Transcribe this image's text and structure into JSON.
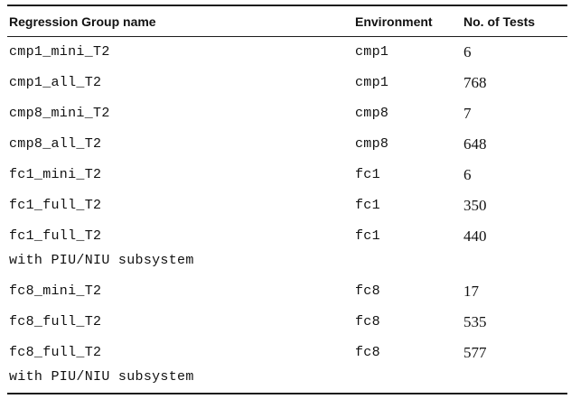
{
  "page": {
    "background_color": "#ffffff",
    "text_color": "#111111",
    "rule_color": "#1c1c1c"
  },
  "table": {
    "columns": [
      {
        "key": "name",
        "label": "Regression Group name"
      },
      {
        "key": "environment",
        "label": "Environment"
      },
      {
        "key": "tests",
        "label": "No. of Tests"
      }
    ],
    "rows": [
      {
        "name": "cmp1_mini_T2",
        "note": "",
        "environment": "cmp1",
        "tests": "6"
      },
      {
        "name": "cmp1_all_T2",
        "note": "",
        "environment": "cmp1",
        "tests": "768"
      },
      {
        "name": "cmp8_mini_T2",
        "note": "",
        "environment": "cmp8",
        "tests": "7"
      },
      {
        "name": "cmp8_all_T2",
        "note": "",
        "environment": "cmp8",
        "tests": "648"
      },
      {
        "name": "fc1_mini_T2",
        "note": "",
        "environment": "fc1",
        "tests": "6"
      },
      {
        "name": "fc1_full_T2",
        "note": "",
        "environment": "fc1",
        "tests": "350"
      },
      {
        "name": "fc1_full_T2",
        "note": "with PIU/NIU subsystem",
        "environment": "fc1",
        "tests": "440"
      },
      {
        "name": "fc8_mini_T2",
        "note": "",
        "environment": "fc8",
        "tests": "17"
      },
      {
        "name": "fc8_full_T2",
        "note": "",
        "environment": "fc8",
        "tests": "535"
      },
      {
        "name": "fc8_full_T2",
        "note": "with PIU/NIU subsystem",
        "environment": "fc8",
        "tests": "577"
      }
    ]
  }
}
